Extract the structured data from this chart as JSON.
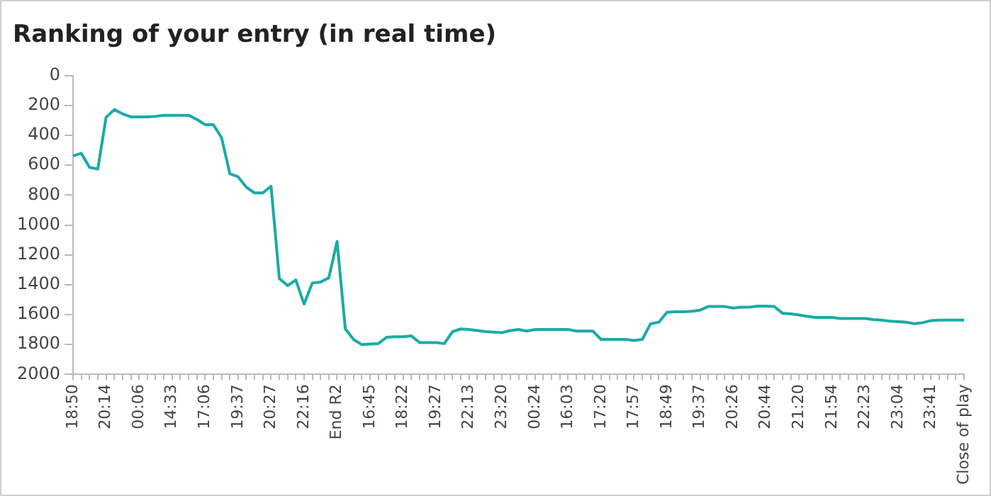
{
  "chart_data": {
    "type": "line",
    "title": "Ranking of your entry (in real time)",
    "categories": [
      "18:50",
      null,
      null,
      null,
      "20:14",
      null,
      null,
      null,
      "00:06",
      null,
      null,
      null,
      "14:33",
      null,
      null,
      null,
      "17:06",
      null,
      null,
      null,
      "19:37",
      null,
      null,
      null,
      "20:27",
      null,
      null,
      null,
      "22:16",
      null,
      null,
      null,
      "End R2",
      null,
      null,
      null,
      "16:45",
      null,
      null,
      null,
      "18:22",
      null,
      null,
      null,
      "19:27",
      null,
      null,
      null,
      "22:13",
      null,
      null,
      null,
      "23:20",
      null,
      null,
      null,
      "00:24",
      null,
      null,
      null,
      "16:03",
      null,
      null,
      null,
      "17:20",
      null,
      null,
      null,
      "17:57",
      null,
      null,
      null,
      "18:49",
      null,
      null,
      null,
      "19:37",
      null,
      null,
      null,
      "20:26",
      null,
      null,
      null,
      "20:44",
      null,
      null,
      null,
      "21:20",
      null,
      null,
      null,
      "21:54",
      null,
      null,
      null,
      "22:23",
      null,
      null,
      null,
      "23:04",
      null,
      null,
      null,
      "23:41",
      null,
      null,
      null,
      "Close of play"
    ],
    "series": [
      {
        "color": "#1aaba6",
        "values": [
          537,
          520,
          614,
          625,
          279,
          227,
          255,
          276,
          276,
          276,
          272,
          265,
          265,
          265,
          265,
          293,
          328,
          328,
          415,
          656,
          677,
          747,
          785,
          785,
          740,
          1358,
          1406,
          1368,
          1529,
          1389,
          1382,
          1354,
          1110,
          1696,
          1766,
          1801,
          1797,
          1794,
          1752,
          1748,
          1748,
          1742,
          1787,
          1787,
          1787,
          1794,
          1714,
          1696,
          1700,
          1707,
          1714,
          1717,
          1721,
          1707,
          1700,
          1710,
          1700,
          1700,
          1700,
          1700,
          1700,
          1710,
          1710,
          1710,
          1766,
          1766,
          1766,
          1766,
          1773,
          1766,
          1661,
          1651,
          1584,
          1581,
          1581,
          1577,
          1570,
          1546,
          1546,
          1546,
          1556,
          1550,
          1550,
          1543,
          1543,
          1546,
          1591,
          1595,
          1602,
          1612,
          1619,
          1619,
          1619,
          1626,
          1626,
          1626,
          1626,
          1633,
          1637,
          1644,
          1647,
          1651,
          1661,
          1654,
          1640,
          1637,
          1637,
          1637,
          1637
        ]
      }
    ],
    "ylim": [
      2000,
      0
    ],
    "yticks": [
      0,
      200,
      400,
      600,
      800,
      1000,
      1200,
      1400,
      1600,
      1800,
      2000
    ],
    "grid": false,
    "legend": false,
    "marker": "none",
    "line_style": "solid"
  }
}
